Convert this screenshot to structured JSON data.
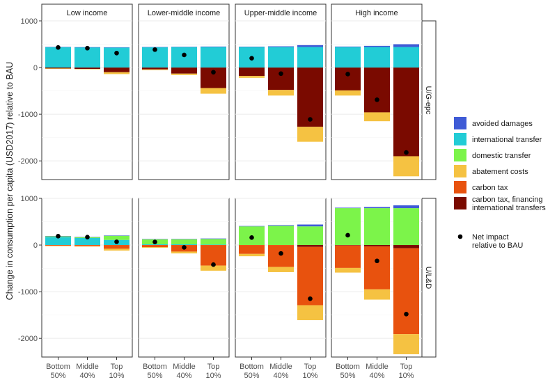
{
  "chart_data": {
    "type": "bar",
    "ylabel": "Change in consumption per capita (USD2017) relative to BAU",
    "ylim": [
      -2400,
      1000
    ],
    "yticks": [
      1000,
      0,
      -1000,
      -2000
    ],
    "ytick_labels": [
      "1000",
      "0",
      "-1000",
      "-2000"
    ],
    "columns": [
      "Low income",
      "Lower-middle income",
      "Upper-middle income",
      "High income"
    ],
    "rows": [
      "U/G-epc",
      "U/L&D"
    ],
    "categories": [
      [
        "Bottom",
        "50%"
      ],
      [
        "Middle",
        "40%"
      ],
      [
        "Top",
        "10%"
      ]
    ],
    "components": [
      {
        "key": "avoided",
        "name": "avoided damages",
        "color": "#3F5BD6"
      },
      {
        "key": "intl",
        "name": "international transfer",
        "color": "#22CCD6"
      },
      {
        "key": "dom",
        "name": "domestic transfer",
        "color": "#7CF44A"
      },
      {
        "key": "abate",
        "name": "abatement costs",
        "color": "#F5C242"
      },
      {
        "key": "ctax",
        "name": "carbon tax",
        "color": "#E8520E"
      },
      {
        "key": "ctaxfin",
        "name": "carbon tax, financing international transfers",
        "color": "#7A0A00"
      }
    ],
    "legend_lines": {
      "ctaxfin": [
        "carbon tax, financing",
        "international transfers"
      ],
      "net": [
        "Net impact",
        "relative to BAU"
      ]
    },
    "net_label": "Net impact relative to BAU",
    "panels": [
      {
        "row": 0,
        "col": 0,
        "bars": [
          {
            "avoided": 2,
            "intl": 440,
            "dom": 0,
            "abate": -10,
            "ctax": 0,
            "ctaxfin": -20,
            "net": 430
          },
          {
            "avoided": 2,
            "intl": 435,
            "dom": 0,
            "abate": -8,
            "ctax": 0,
            "ctaxfin": -30,
            "net": 415
          },
          {
            "avoided": 5,
            "intl": 430,
            "dom": 0,
            "abate": -40,
            "ctax": 0,
            "ctaxfin": -100,
            "net": 310
          }
        ]
      },
      {
        "row": 0,
        "col": 1,
        "bars": [
          {
            "avoided": 5,
            "intl": 435,
            "dom": 0,
            "abate": -15,
            "ctax": 0,
            "ctaxfin": -40,
            "net": 385
          },
          {
            "avoided": 5,
            "intl": 440,
            "dom": 0,
            "abate": -30,
            "ctax": 0,
            "ctaxfin": -130,
            "net": 270
          },
          {
            "avoided": 10,
            "intl": 440,
            "dom": 0,
            "abate": -120,
            "ctax": 0,
            "ctaxfin": -440,
            "net": -100
          }
        ]
      },
      {
        "row": 0,
        "col": 2,
        "bars": [
          {
            "avoided": 8,
            "intl": 440,
            "dom": 0,
            "abate": -40,
            "ctax": 0,
            "ctaxfin": -180,
            "net": 200
          },
          {
            "avoided": 15,
            "intl": 440,
            "dom": 0,
            "abate": -120,
            "ctax": 0,
            "ctaxfin": -480,
            "net": -130
          },
          {
            "avoided": 40,
            "intl": 440,
            "dom": 0,
            "abate": -320,
            "ctax": 0,
            "ctaxfin": -1270,
            "net": -1110
          }
        ]
      },
      {
        "row": 0,
        "col": 3,
        "bars": [
          {
            "avoided": 10,
            "intl": 440,
            "dom": 0,
            "abate": -110,
            "ctax": 0,
            "ctaxfin": -490,
            "net": -140
          },
          {
            "avoided": 25,
            "intl": 440,
            "dom": 0,
            "abate": -190,
            "ctax": 0,
            "ctaxfin": -960,
            "net": -690
          },
          {
            "avoided": 60,
            "intl": 440,
            "dom": 0,
            "abate": -430,
            "ctax": 0,
            "ctaxfin": -1900,
            "net": -1820
          }
        ]
      },
      {
        "row": 1,
        "col": 0,
        "bars": [
          {
            "avoided": 2,
            "intl": 170,
            "dom": 20,
            "abate": -10,
            "ctax": -15,
            "ctaxfin": 0,
            "net": 190
          },
          {
            "avoided": 2,
            "intl": 150,
            "dom": 20,
            "abate": -8,
            "ctax": -25,
            "ctaxfin": 0,
            "net": 170
          },
          {
            "avoided": 5,
            "intl": 110,
            "dom": 90,
            "abate": -40,
            "ctax": -80,
            "ctaxfin": 0,
            "net": 70
          }
        ]
      },
      {
        "row": 1,
        "col": 1,
        "bars": [
          {
            "avoided": 3,
            "intl": 15,
            "dom": 110,
            "abate": -15,
            "ctax": -45,
            "ctaxfin": 0,
            "net": 65
          },
          {
            "avoided": 5,
            "intl": 15,
            "dom": 110,
            "abate": -40,
            "ctax": -140,
            "ctaxfin": 0,
            "net": -50
          },
          {
            "avoided": 10,
            "intl": 10,
            "dom": 120,
            "abate": -110,
            "ctax": -440,
            "ctaxfin": 0,
            "net": -420
          }
        ]
      },
      {
        "row": 1,
        "col": 2,
        "bars": [
          {
            "avoided": 8,
            "intl": 0,
            "dom": 400,
            "abate": -50,
            "ctax": -190,
            "ctaxfin": 0,
            "net": 160
          },
          {
            "avoided": 15,
            "intl": 0,
            "dom": 410,
            "abate": -110,
            "ctax": -470,
            "ctaxfin": 0,
            "net": -180
          },
          {
            "avoided": 40,
            "intl": 0,
            "dom": 400,
            "abate": -320,
            "ctax": -1250,
            "ctaxfin": -40,
            "net": -1150
          }
        ]
      },
      {
        "row": 1,
        "col": 3,
        "bars": [
          {
            "avoided": 10,
            "intl": 0,
            "dom": 790,
            "abate": -100,
            "ctax": -480,
            "ctaxfin": -10,
            "net": 210
          },
          {
            "avoided": 25,
            "intl": 0,
            "dom": 790,
            "abate": -220,
            "ctax": -920,
            "ctaxfin": -30,
            "net": -340
          },
          {
            "avoided": 60,
            "intl": 0,
            "dom": 790,
            "abate": -430,
            "ctax": -1840,
            "ctaxfin": -70,
            "net": -1480
          }
        ]
      }
    ]
  }
}
